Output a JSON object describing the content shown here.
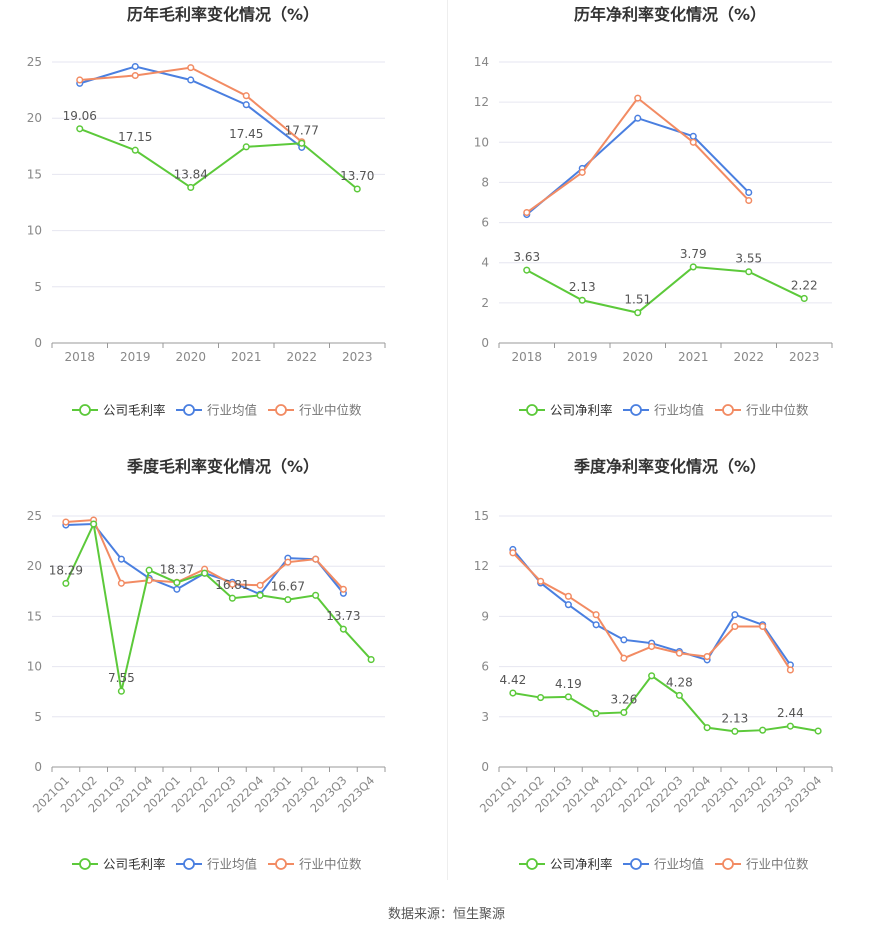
{
  "colors": {
    "company": "#5cc93a",
    "avg": "#4a7fe0",
    "median": "#f28b63",
    "grid": "#e6e6f0",
    "axis": "#888888",
    "title": "#333333"
  },
  "source": "数据来源：恒生聚源",
  "chart_data": [
    {
      "type": "line",
      "title": "历年毛利率变化情况（%）",
      "categories": [
        "2018",
        "2019",
        "2020",
        "2021",
        "2022",
        "2023"
      ],
      "ylim": [
        0,
        25
      ],
      "yticks": [
        0,
        5,
        10,
        15,
        20,
        25
      ],
      "series": [
        {
          "name": "公司毛利率",
          "role": "company",
          "values": [
            19.06,
            17.15,
            13.84,
            17.45,
            17.77,
            13.7
          ]
        },
        {
          "name": "行业均值",
          "role": "avg",
          "values": [
            23.1,
            24.6,
            23.4,
            21.2,
            17.4,
            null
          ]
        },
        {
          "name": "行业中位数",
          "role": "median",
          "values": [
            23.4,
            23.8,
            24.5,
            22.0,
            17.9,
            null
          ]
        }
      ],
      "labels": [
        "19.06",
        "17.15",
        "13.84",
        "17.45",
        "17.77",
        "13.70"
      ],
      "legend": "bottom"
    },
    {
      "type": "line",
      "title": "历年净利率变化情况（%）",
      "categories": [
        "2018",
        "2019",
        "2020",
        "2021",
        "2022",
        "2023"
      ],
      "ylim": [
        0,
        14
      ],
      "yticks": [
        0,
        2,
        4,
        6,
        8,
        10,
        12,
        14
      ],
      "series": [
        {
          "name": "公司净利率",
          "role": "company",
          "values": [
            3.63,
            2.13,
            1.51,
            3.79,
            3.55,
            2.22
          ]
        },
        {
          "name": "行业均值",
          "role": "avg",
          "values": [
            6.4,
            8.7,
            11.2,
            10.3,
            7.5,
            null
          ]
        },
        {
          "name": "行业中位数",
          "role": "median",
          "values": [
            6.5,
            8.5,
            12.2,
            10.0,
            7.1,
            null
          ]
        }
      ],
      "labels": [
        "3.63",
        "2.13",
        "1.51",
        "3.79",
        "3.55",
        "2.22"
      ],
      "legend": "bottom"
    },
    {
      "type": "line",
      "title": "季度毛利率变化情况（%）",
      "categories": [
        "2021Q1",
        "2021Q2",
        "2021Q3",
        "2021Q4",
        "2022Q1",
        "2022Q2",
        "2022Q3",
        "2022Q4",
        "2023Q1",
        "2023Q2",
        "2023Q3",
        "2023Q4"
      ],
      "ylim": [
        0,
        25
      ],
      "yticks": [
        0,
        5,
        10,
        15,
        20,
        25
      ],
      "series": [
        {
          "name": "公司毛利率",
          "role": "company",
          "values": [
            18.29,
            24.2,
            7.55,
            19.6,
            18.37,
            19.3,
            16.81,
            17.1,
            16.67,
            17.1,
            13.73,
            10.7
          ]
        },
        {
          "name": "行业均值",
          "role": "avg",
          "values": [
            24.1,
            24.2,
            20.7,
            18.8,
            17.7,
            19.3,
            18.4,
            17.2,
            20.8,
            20.7,
            17.3,
            null
          ]
        },
        {
          "name": "行业中位数",
          "role": "median",
          "values": [
            24.4,
            24.6,
            18.3,
            18.6,
            18.4,
            19.7,
            18.2,
            18.1,
            20.4,
            20.7,
            17.7,
            null
          ]
        }
      ],
      "labels": [
        "18.29",
        "",
        "7.55",
        "",
        "18.37",
        "",
        "16.81",
        "",
        "16.67",
        "",
        "13.73",
        ""
      ],
      "legend": "bottom"
    },
    {
      "type": "line",
      "title": "季度净利率变化情况（%）",
      "categories": [
        "2021Q1",
        "2021Q2",
        "2021Q3",
        "2021Q4",
        "2022Q1",
        "2022Q2",
        "2022Q3",
        "2022Q4",
        "2023Q1",
        "2023Q2",
        "2023Q3",
        "2023Q4"
      ],
      "ylim": [
        0,
        15
      ],
      "yticks": [
        0,
        3,
        6,
        9,
        12,
        15
      ],
      "series": [
        {
          "name": "公司净利率",
          "role": "company",
          "values": [
            4.42,
            4.15,
            4.19,
            3.2,
            3.26,
            5.45,
            4.28,
            2.35,
            2.13,
            2.2,
            2.44,
            2.15
          ]
        },
        {
          "name": "行业均值",
          "role": "avg",
          "values": [
            13.0,
            11.0,
            9.7,
            8.5,
            7.6,
            7.4,
            6.9,
            6.4,
            9.1,
            8.5,
            6.1,
            null
          ]
        },
        {
          "name": "行业中位数",
          "role": "median",
          "values": [
            12.8,
            11.1,
            10.2,
            9.1,
            6.5,
            7.2,
            6.8,
            6.6,
            8.4,
            8.4,
            5.8,
            null
          ]
        }
      ],
      "labels": [
        "4.42",
        "",
        "4.19",
        "",
        "3.26",
        "",
        "4.28",
        "",
        "2.13",
        "",
        "2.44",
        ""
      ],
      "legend": "bottom"
    }
  ]
}
